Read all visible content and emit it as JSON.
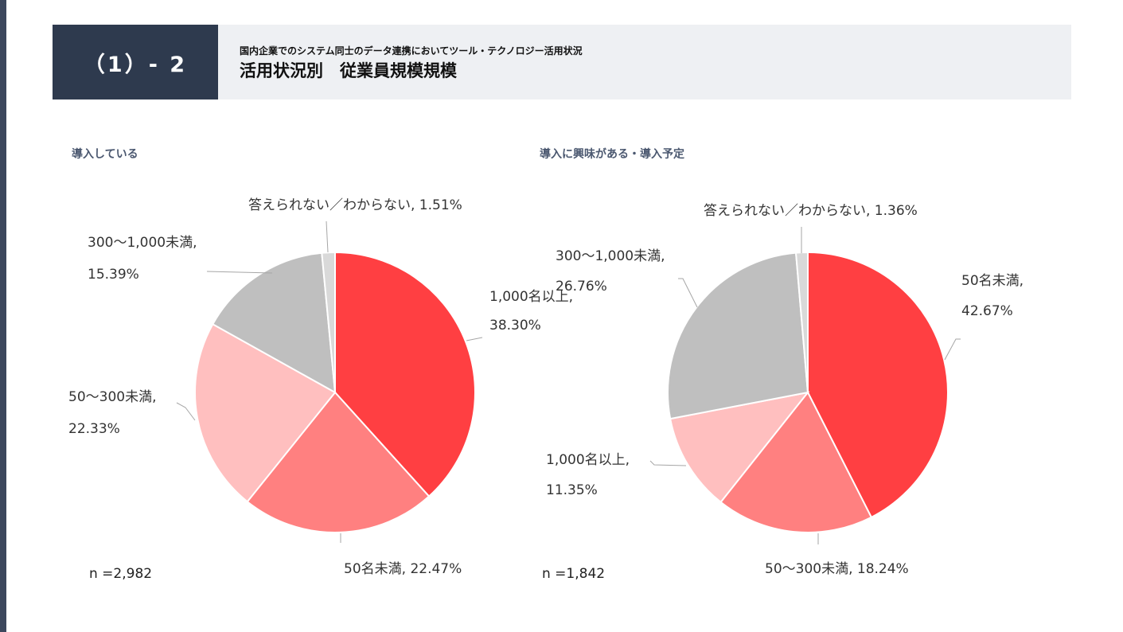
{
  "header": {
    "number": "（1）- 2",
    "subtitle": "国内企業でのシステム同士のデータ連携においてツール・テクノロジー活用状況",
    "title": "活用状況別　従業員規模規模"
  },
  "panels": [
    {
      "title": "導入している",
      "n": "n =2,982"
    },
    {
      "title": "導入に興味がある・導入予定",
      "n": "n =1,842"
    }
  ],
  "chart_data": [
    {
      "type": "pie",
      "title": "導入している",
      "note": "n =2,982",
      "slices": [
        {
          "name": "1,000名以上",
          "value": 38.3,
          "color": "#ff3f42",
          "label_lines": [
            "1,000名以上,",
            "38.30%"
          ]
        },
        {
          "name": "50名未満",
          "value": 22.47,
          "color": "#ff8080",
          "label_lines": [
            "50名未満, 22.47%"
          ]
        },
        {
          "name": "50～300未満",
          "value": 22.33,
          "color": "#ffbfbf",
          "label_lines": [
            "50～300未満,",
            "22.33%"
          ]
        },
        {
          "name": "300～1,000未満",
          "value": 15.39,
          "color": "#bfbfbf",
          "label_lines": [
            "300～1,000未満,",
            "15.39%"
          ]
        },
        {
          "name": "答えられない／わからない",
          "value": 1.51,
          "color": "#d9d9d9",
          "label_lines": [
            "答えられない／わからない, 1.51%"
          ]
        }
      ]
    },
    {
      "type": "pie",
      "title": "導入に興味がある・導入予定",
      "note": "n =1,842",
      "slices": [
        {
          "name": "50名未満",
          "value": 42.67,
          "color": "#ff3f42",
          "label_lines": [
            "50名未満,",
            "42.67%"
          ]
        },
        {
          "name": "50～300未満",
          "value": 18.24,
          "color": "#ff8080",
          "label_lines": [
            "50～300未満, 18.24%"
          ]
        },
        {
          "name": "1,000名以上",
          "value": 11.35,
          "color": "#ffbfbf",
          "label_lines": [
            "1,000名以上,",
            "11.35%"
          ]
        },
        {
          "name": "300～1,000未満",
          "value": 26.76,
          "color": "#bfbfbf",
          "label_lines": [
            "300～1,000未満,",
            "26.76%"
          ]
        },
        {
          "name": "答えられない／わからない",
          "value": 1.36,
          "color": "#d9d9d9",
          "label_lines": [
            "答えられない／わからない, 1.36%"
          ]
        }
      ]
    }
  ]
}
